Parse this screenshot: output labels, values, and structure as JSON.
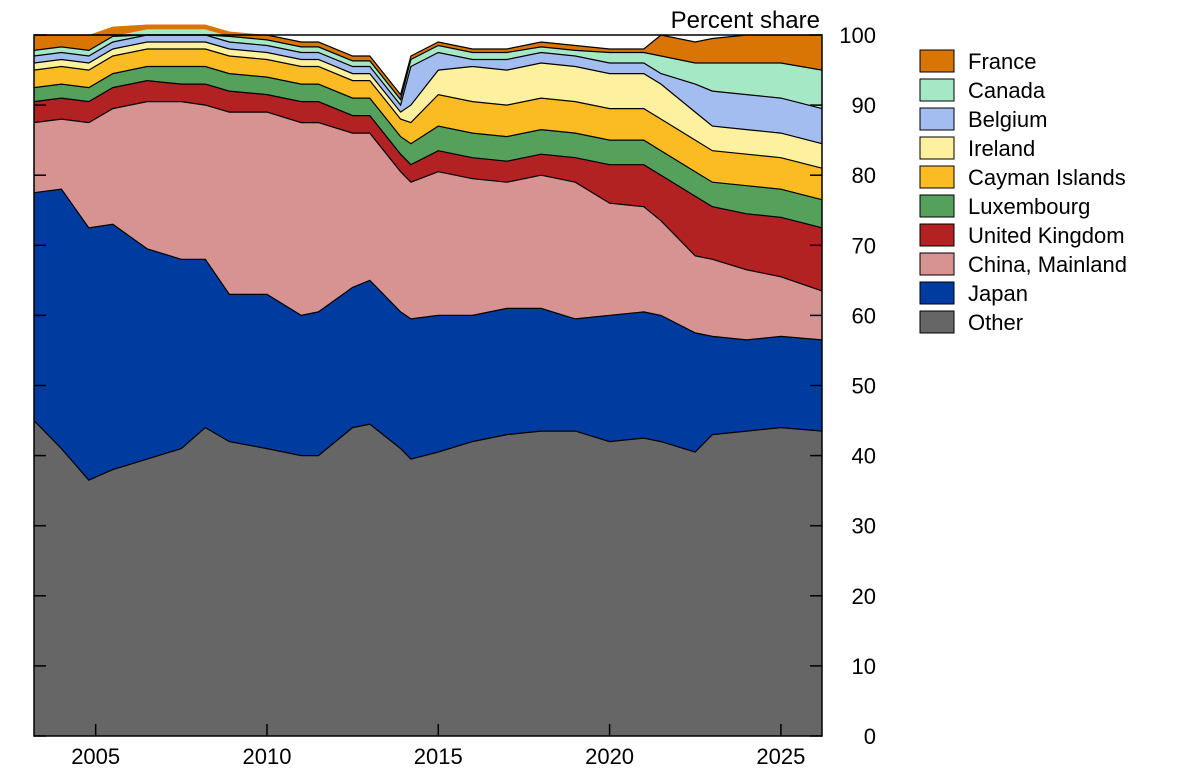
{
  "chart_data": {
    "type": "area",
    "stacked": true,
    "unit_label": "Percent share",
    "y_axis_side": "right",
    "ylim": [
      0,
      100
    ],
    "y_ticks": [
      0,
      10,
      20,
      30,
      40,
      50,
      60,
      70,
      80,
      90,
      100
    ],
    "xlim": [
      2003.2,
      2026.2
    ],
    "x_ticks": [
      2005,
      2010,
      2015,
      2020,
      2025
    ],
    "grid": false,
    "legend_position": "right",
    "x": [
      2003.2,
      2004,
      2004.8,
      2005.5,
      2006.5,
      2007.5,
      2008.2,
      2008.9,
      2010,
      2011,
      2011.5,
      2012.5,
      2013,
      2013.9,
      2014.2,
      2015,
      2016,
      2017,
      2018,
      2019,
      2020,
      2021,
      2021.5,
      2022.5,
      2023,
      2024,
      2025,
      2026.2
    ],
    "series": [
      {
        "name": "Other",
        "color": "#666666",
        "values": [
          45,
          41,
          36.5,
          38,
          39.5,
          41,
          44,
          42,
          41,
          40,
          40,
          44,
          44.5,
          41,
          39.5,
          40.5,
          42,
          43,
          43.5,
          43.5,
          42,
          42.5,
          42,
          40.5,
          43,
          43.5,
          44,
          43.5
        ]
      },
      {
        "name": "Japan",
        "color": "#003ba0",
        "values": [
          32.5,
          37,
          36,
          35,
          30,
          27,
          24,
          21,
          22,
          20,
          20.5,
          20,
          20.5,
          19.5,
          20,
          19.5,
          18,
          18,
          17.5,
          16,
          18,
          18,
          18,
          17,
          14,
          13,
          13,
          13
        ]
      },
      {
        "name": "China, Mainland",
        "color": "#d79292",
        "values": [
          10,
          10,
          15,
          16.5,
          21,
          22.5,
          22,
          26,
          26,
          27.5,
          27,
          22,
          21,
          20,
          19.5,
          20.5,
          19.5,
          18,
          19,
          19.5,
          16,
          15,
          13.5,
          11,
          11,
          10,
          8.5,
          7
        ]
      },
      {
        "name": "United Kingdom",
        "color": "#b22222",
        "values": [
          3,
          3,
          3,
          3,
          3,
          2.5,
          3,
          3,
          2.5,
          3,
          3,
          2.5,
          2.5,
          2.5,
          2.5,
          3,
          3,
          3,
          3,
          3.5,
          5.5,
          6,
          6.5,
          8.5,
          7.5,
          8,
          8.5,
          9
        ]
      },
      {
        "name": "Luxembourg",
        "color": "#55a05a",
        "values": [
          2,
          2,
          2,
          2,
          2,
          2.5,
          2.5,
          2.5,
          2.5,
          2.5,
          2.5,
          2.5,
          2.5,
          2.5,
          3,
          3.5,
          3.5,
          3.5,
          3.5,
          3.5,
          3.5,
          3.5,
          3.5,
          3.5,
          3.5,
          4,
          4,
          4
        ]
      },
      {
        "name": "Cayman Islands",
        "color": "#fbbc23",
        "values": [
          2.5,
          2.5,
          2.5,
          2.5,
          2.5,
          2.5,
          2.5,
          2.5,
          2.5,
          2.5,
          2.5,
          2.5,
          2.5,
          2.5,
          3,
          4.5,
          4.5,
          4.5,
          4.5,
          4.5,
          4.5,
          4.5,
          4.5,
          4.5,
          4.5,
          4.5,
          4.5,
          4.5
        ]
      },
      {
        "name": "Ireland",
        "color": "#fdf09e",
        "values": [
          1,
          1,
          1,
          1,
          1,
          1,
          1,
          1,
          1,
          1,
          1,
          1,
          1,
          1,
          2.5,
          3.5,
          5,
          5,
          5,
          5,
          5,
          5,
          5,
          4,
          3.5,
          3.5,
          3.5,
          3.5
        ]
      },
      {
        "name": "Belgium",
        "color": "#a4bdf1",
        "values": [
          1,
          1,
          1,
          1,
          1,
          1,
          1,
          1,
          1,
          1,
          1,
          1,
          1,
          1,
          5.5,
          2.5,
          1,
          1.5,
          1.5,
          1.5,
          1.5,
          1.5,
          1.5,
          4,
          5,
          5,
          5,
          5
        ]
      },
      {
        "name": "Canada",
        "color": "#a5e8c6",
        "values": [
          0.8,
          0.8,
          0.8,
          0.8,
          0.8,
          0.8,
          0.8,
          0.8,
          0.8,
          0.8,
          0.8,
          0.8,
          0.8,
          0.8,
          1,
          1,
          1,
          1,
          0.8,
          0.8,
          1.5,
          1.5,
          2.5,
          3,
          4,
          4.5,
          5,
          5.5
        ]
      },
      {
        "name": "France",
        "color": "#d97505",
        "values": [
          2.2,
          1.7,
          2.2,
          1.4,
          0.7,
          0.7,
          0.7,
          0.7,
          0.7,
          0.7,
          0.7,
          0.7,
          0.7,
          0.7,
          0.5,
          0.5,
          0.5,
          0.5,
          0.7,
          0.7,
          0.5,
          0.5,
          3,
          3,
          3.5,
          4,
          4,
          5
        ]
      }
    ]
  }
}
